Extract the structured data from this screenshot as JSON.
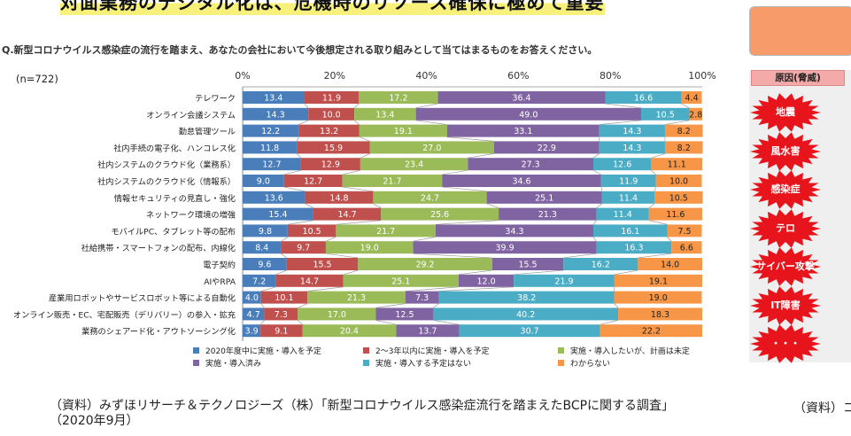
{
  "page": {
    "title": "対面業務のデジタル化は、危機時のリソース確保に極めて重要",
    "question": "Q.新型コロナウイルス感染症の流行を踏まえ、あなたの会社において今後想定される取り組みとして当てはまるものをお答えください。",
    "n_label": "(n=722)",
    "source_line1": "（資料）みずほリサーチ＆テクノロジーズ（株）「新型コロナウイルス感染症流行を踏まえたBCPに関する調査」",
    "source_line2": "（2020年9月）",
    "source_right": "（資料）コ"
  },
  "side_panel": {
    "header": "原因(脅威)",
    "causes": [
      "地震",
      "風水害",
      "感染症",
      "テロ",
      "サイバー攻撃",
      "IT障害",
      "・・・"
    ],
    "burst_color": "#e8141c",
    "box_color": "#f79b6a"
  },
  "chart_data": {
    "type": "bar",
    "orientation": "horizontal",
    "stacked": true,
    "title": "",
    "xlabel": "",
    "ylabel": "",
    "xlim": [
      0,
      100
    ],
    "x_ticks": [
      "0%",
      "20%",
      "40%",
      "60%",
      "80%",
      "100%"
    ],
    "legend_position": "bottom",
    "categories": [
      "テレワーク",
      "オンライン会議システム",
      "勤怠管理ツール",
      "社内手続の電子化、ハンコレス化",
      "社内システムのクラウド化（業務系）",
      "社内システムのクラウド化（情報系）",
      "情報セキュリティの見直し・強化",
      "ネットワーク環境の増強",
      "モバイルPC、タブレット等の配布",
      "社給携帯・スマートフォンの配布、内線化",
      "電子契約",
      "AIやRPA",
      "産業用ロボットやサービスロボット等による自動化",
      "オンライン販売・EC、宅配販売（デリバリー）の参入・拡充",
      "業務のシェアード化・アウトソーシング化"
    ],
    "series": [
      {
        "name": "2020年度中に実施・導入を予定",
        "color": "#4a7ebb",
        "values": [
          13.4,
          14.3,
          12.2,
          11.8,
          12.7,
          9.0,
          13.6,
          15.4,
          9.8,
          8.4,
          9.6,
          7.2,
          4.0,
          4.7,
          3.9
        ]
      },
      {
        "name": "2～3年以内に実施・導入を予定",
        "color": "#c0504d",
        "values": [
          11.9,
          10.0,
          13.2,
          15.9,
          12.9,
          12.7,
          14.8,
          14.7,
          10.5,
          9.7,
          15.5,
          14.7,
          10.1,
          7.3,
          9.1
        ]
      },
      {
        "name": "実施・導入したいが、計画は未定",
        "color": "#9bbb59",
        "values": [
          17.2,
          13.4,
          19.1,
          27.0,
          23.4,
          21.7,
          24.7,
          25.6,
          21.7,
          19.0,
          29.2,
          25.1,
          21.3,
          17.0,
          20.4
        ]
      },
      {
        "name": "実施・導入済み",
        "color": "#8064a2",
        "values": [
          36.4,
          49.0,
          33.1,
          22.9,
          27.3,
          34.6,
          25.1,
          21.3,
          34.3,
          39.9,
          15.5,
          12.0,
          7.3,
          12.5,
          13.7
        ]
      },
      {
        "name": "実施・導入する予定はない",
        "color": "#4bacc6",
        "values": [
          16.6,
          10.5,
          14.3,
          14.3,
          12.6,
          11.9,
          11.4,
          11.4,
          16.1,
          16.3,
          16.2,
          21.9,
          38.2,
          40.2,
          30.7
        ]
      },
      {
        "name": "わからない",
        "color": "#f79646",
        "values": [
          4.4,
          2.8,
          8.2,
          8.2,
          11.1,
          10.0,
          10.5,
          11.6,
          7.5,
          6.6,
          14.0,
          19.1,
          19.0,
          18.3,
          22.2
        ]
      }
    ]
  }
}
